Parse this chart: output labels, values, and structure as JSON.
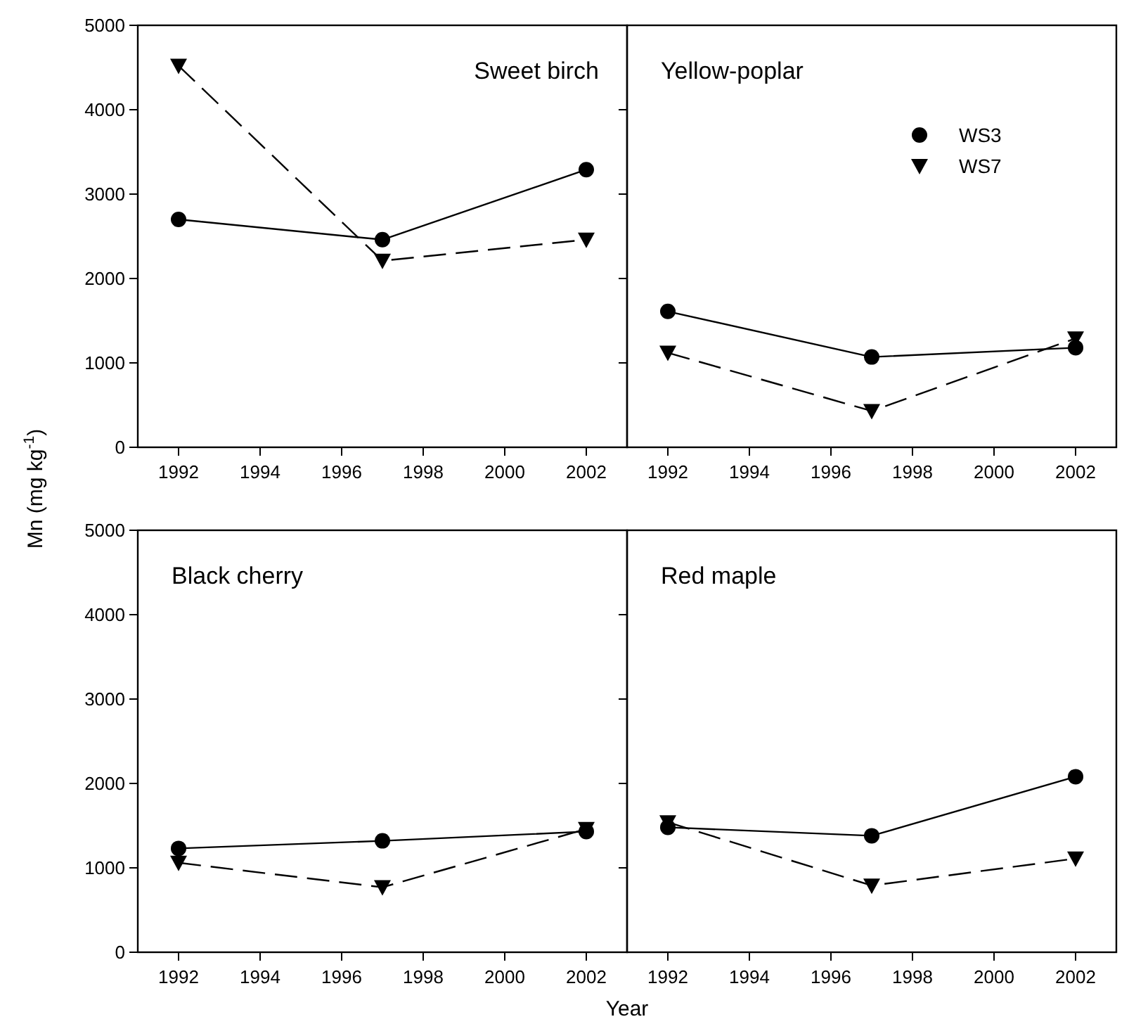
{
  "chart_data": [
    {
      "type": "line",
      "title": "Sweet birch",
      "ylabel": "Mn (mg kg$^{-1}$)",
      "x": [
        1992,
        1997,
        2002
      ],
      "xlim": [
        1991,
        2003
      ],
      "xticks": [
        1992,
        1994,
        1996,
        1998,
        2000,
        2002
      ],
      "ylim": [
        0,
        5000
      ],
      "yticks": [
        0,
        1000,
        2000,
        3000,
        4000,
        5000
      ],
      "grid": false,
      "legend": false,
      "series": [
        {
          "color": "#000000",
          "marker": "circle",
          "line_style": "solid",
          "values": [
            2700,
            2460,
            3290
          ]
        },
        {
          "color": "#000000",
          "marker": "triangle",
          "line_style": "dashed",
          "values": [
            4520,
            2210,
            2460
          ]
        }
      ]
    },
    {
      "type": "line",
      "title": "Yellow-poplar",
      "x": [
        1992,
        1997,
        2002
      ],
      "xlim": [
        1991,
        2003
      ],
      "xticks": [
        1992,
        1994,
        1996,
        1998,
        2000,
        2002
      ],
      "ylim": [
        0,
        5000
      ],
      "yticks": [
        0,
        1000,
        2000,
        3000,
        4000,
        5000
      ],
      "tick_labels": "x",
      "grid": false,
      "legend": "top right",
      "series": [
        {
          "name": "WS3",
          "color": "#000000",
          "marker": "circle",
          "line_style": "solid",
          "values": [
            1610,
            1070,
            1180
          ]
        },
        {
          "name": "WS7",
          "color": "#000000",
          "marker": "triangle",
          "line_style": "dashed",
          "values": [
            1120,
            430,
            1290
          ]
        }
      ]
    },
    {
      "type": "line",
      "title": "Black cherry",
      "xlabel": "Year",
      "x": [
        1992,
        1997,
        2002
      ],
      "xlim": [
        1991,
        2003
      ],
      "xticks": [
        1992,
        1994,
        1996,
        1998,
        2000,
        2002
      ],
      "ylim": [
        0,
        5000
      ],
      "yticks": [
        0,
        1000,
        2000,
        3000,
        4000,
        5000
      ],
      "grid": false,
      "legend": false,
      "series": [
        {
          "color": "#000000",
          "marker": "circle",
          "line_style": "solid",
          "values": [
            1230,
            1320,
            1430
          ]
        },
        {
          "color": "#000000",
          "marker": "triangle",
          "line_style": "dashed",
          "values": [
            1060,
            770,
            1460
          ]
        }
      ]
    },
    {
      "type": "line",
      "title": "Red maple",
      "x": [
        1992,
        1997,
        2002
      ],
      "xlim": [
        1991,
        2003
      ],
      "xticks": [
        1992,
        1994,
        1996,
        1998,
        2000,
        2002
      ],
      "ylim": [
        0,
        5000
      ],
      "yticks": [
        0,
        1000,
        2000,
        3000,
        4000,
        5000
      ],
      "tick_labels": "x",
      "grid": false,
      "legend": false,
      "series": [
        {
          "color": "#000000",
          "marker": "circle",
          "line_style": "solid",
          "values": [
            1480,
            1380,
            2080
          ]
        },
        {
          "color": "#000000",
          "marker": "triangle",
          "line_style": "dashed",
          "values": [
            1540,
            790,
            1110
          ]
        }
      ]
    }
  ]
}
